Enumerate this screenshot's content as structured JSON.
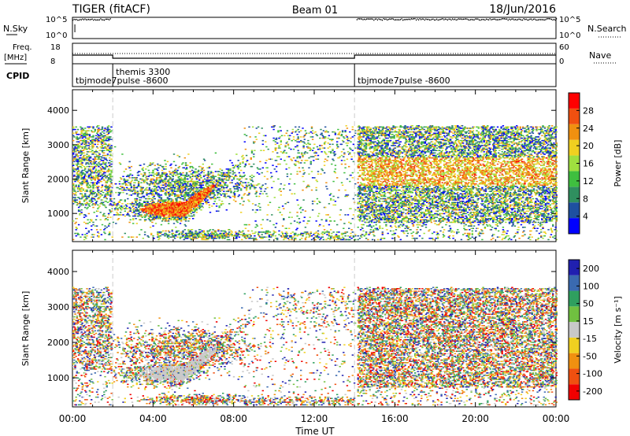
{
  "header": {
    "radar": "TIGER (fitACF)",
    "beam": "Beam 01",
    "date": "18/Jun/2016"
  },
  "panels": {
    "nsky": {
      "left_label": "N.Sky",
      "right_label": "N.Search",
      "left_ticks": [
        "10^5",
        "10^0"
      ],
      "right_ticks": [
        "10^5",
        "10^0"
      ]
    },
    "freq": {
      "left_label_1": "Freq.",
      "left_label_2": "[MHz]",
      "right_label": "Nave",
      "left_ticks": [
        "18",
        "8"
      ],
      "right_ticks": [
        "60",
        "0"
      ]
    },
    "cpid": {
      "label": "CPID",
      "entries": [
        "tbjmode7pulse  -8600",
        "themis  3300",
        "tbjmode7pulse  -8600"
      ]
    },
    "power": {
      "ylabel": "Slant Range [km]",
      "cbar_label": "Power [dB]"
    },
    "velocity": {
      "ylabel": "Slant Range [km]",
      "cbar_label": "Velocity [m s⁻¹]"
    }
  },
  "xaxis_label": "Time UT",
  "chart_data": [
    {
      "type": "heatmap",
      "name": "power",
      "xlabel": "Time UT",
      "ylabel": "Slant Range [km]",
      "x_ticks": [
        "00:00",
        "04:00",
        "08:00",
        "12:00",
        "16:00",
        "20:00",
        "00:00"
      ],
      "xlim_hours": [
        0,
        24
      ],
      "ylim": [
        180,
        4600
      ],
      "y_ticks": [
        1000,
        2000,
        3000,
        4000
      ],
      "colorbar": {
        "label": "Power [dB]",
        "ticks": [
          4,
          8,
          12,
          16,
          20,
          24,
          28
        ],
        "range": [
          0,
          32
        ]
      },
      "mode_boundaries_hours": [
        2.0,
        14.0
      ]
    },
    {
      "type": "heatmap",
      "name": "velocity",
      "xlabel": "Time UT",
      "ylabel": "Slant Range [km]",
      "x_ticks": [
        "00:00",
        "04:00",
        "08:00",
        "12:00",
        "16:00",
        "20:00",
        "00:00"
      ],
      "xlim_hours": [
        0,
        24
      ],
      "ylim": [
        180,
        4600
      ],
      "y_ticks": [
        1000,
        2000,
        3000,
        4000
      ],
      "colorbar": {
        "label": "Velocity [m s⁻¹]",
        "ticks": [
          200,
          100,
          50,
          15,
          -15,
          -50,
          -100,
          -200
        ]
      },
      "mode_boundaries_hours": [
        2.0,
        14.0
      ]
    }
  ],
  "colors": {
    "power_scale": [
      "#0000ff",
      "#1e50a0",
      "#2f8f5f",
      "#3fbf3f",
      "#9fdf3f",
      "#f0d020",
      "#f09010",
      "#f05010",
      "#ff0000"
    ],
    "velocity_scale": [
      "#2020b0",
      "#3a6ab0",
      "#2f9f5f",
      "#70c040",
      "#c8c8c8",
      "#f0d020",
      "#f09010",
      "#f05010",
      "#f00000"
    ]
  }
}
